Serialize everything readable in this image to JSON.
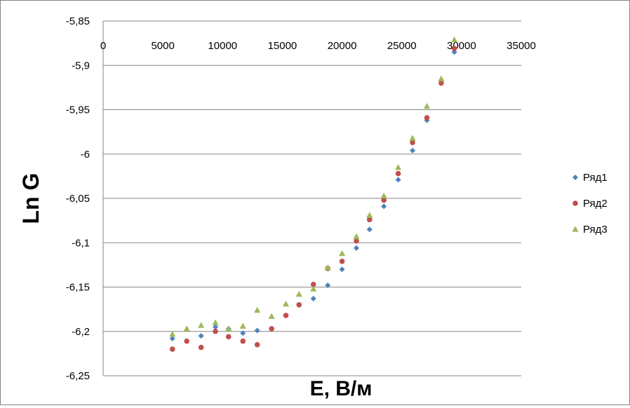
{
  "chart_data": {
    "type": "scatter",
    "title": "",
    "xlabel": "E,  B/м",
    "ylabel": "Ln G",
    "xlim": [
      0,
      35000
    ],
    "ylim": [
      -6.25,
      -5.85
    ],
    "x_ticks": [
      0,
      5000,
      10000,
      15000,
      20000,
      25000,
      30000,
      35000
    ],
    "x_tick_labels": [
      "0",
      "5000",
      "10000",
      "15000",
      "20000",
      "25000",
      "30000",
      "35000"
    ],
    "y_ticks": [
      -5.85,
      -5.9,
      -5.95,
      -6,
      -6.05,
      -6.1,
      -6.15,
      -6.2,
      -6.25
    ],
    "y_tick_labels": [
      "-5,85",
      "-5,9",
      "-5,95",
      "-6",
      "-6,05",
      "-6,1",
      "-6,15",
      "-6,2",
      "-6,25"
    ],
    "x_axis_position": "top",
    "grid": {
      "horizontal": true,
      "vertical": false
    },
    "legend_position": "right",
    "series": [
      {
        "name": "Ряд1",
        "marker": "diamond",
        "color": "#4F81BD",
        "points": [
          [
            5800,
            -6.208
          ],
          [
            8200,
            -6.205
          ],
          [
            9400,
            -6.195
          ],
          [
            10500,
            -6.197
          ],
          [
            11700,
            -6.202
          ],
          [
            12900,
            -6.199
          ],
          [
            17600,
            -6.163
          ],
          [
            18800,
            -6.148
          ],
          [
            20000,
            -6.13
          ],
          [
            21200,
            -6.106
          ],
          [
            22300,
            -6.085
          ],
          [
            23500,
            -6.059
          ],
          [
            24700,
            -6.029
          ],
          [
            25900,
            -5.996
          ],
          [
            27100,
            -5.962
          ],
          [
            29400,
            -5.885
          ]
        ]
      },
      {
        "name": "Ряд2",
        "marker": "circle",
        "color": "#C0504D",
        "points": [
          [
            5800,
            -6.22
          ],
          [
            7000,
            -6.211
          ],
          [
            8200,
            -6.218
          ],
          [
            9400,
            -6.2
          ],
          [
            10500,
            -6.206
          ],
          [
            11700,
            -6.211
          ],
          [
            12900,
            -6.215
          ],
          [
            14100,
            -6.197
          ],
          [
            15300,
            -6.182
          ],
          [
            16400,
            -6.17
          ],
          [
            17600,
            -6.147
          ],
          [
            18800,
            -6.129
          ],
          [
            20000,
            -6.121
          ],
          [
            21200,
            -6.098
          ],
          [
            22300,
            -6.074
          ],
          [
            23500,
            -6.052
          ],
          [
            24700,
            -6.022
          ],
          [
            25900,
            -5.987
          ],
          [
            27100,
            -5.959
          ],
          [
            28300,
            -5.92
          ],
          [
            29400,
            -5.881
          ]
        ]
      },
      {
        "name": "Ряд3",
        "marker": "triangle",
        "color": "#9BBB59",
        "points": [
          [
            5800,
            -6.203
          ],
          [
            7000,
            -6.197
          ],
          [
            8200,
            -6.193
          ],
          [
            9400,
            -6.19
          ],
          [
            10500,
            -6.197
          ],
          [
            11700,
            -6.194
          ],
          [
            12900,
            -6.176
          ],
          [
            14100,
            -6.183
          ],
          [
            15300,
            -6.169
          ],
          [
            16400,
            -6.158
          ],
          [
            17600,
            -6.152
          ],
          [
            18800,
            -6.128
          ],
          [
            20000,
            -6.112
          ],
          [
            21200,
            -6.093
          ],
          [
            22300,
            -6.069
          ],
          [
            23500,
            -6.047
          ],
          [
            24700,
            -6.015
          ],
          [
            25900,
            -5.982
          ],
          [
            27100,
            -5.946
          ],
          [
            28300,
            -5.915
          ],
          [
            29400,
            -5.871
          ]
        ]
      }
    ]
  }
}
